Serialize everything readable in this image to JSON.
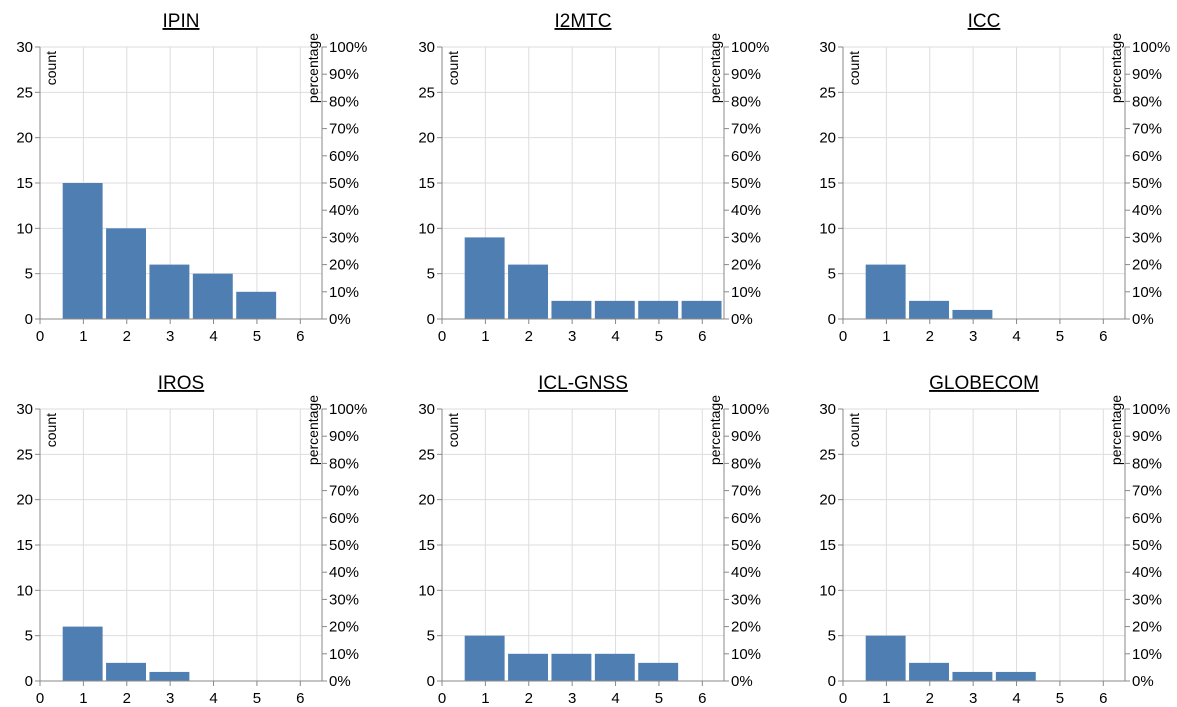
{
  "chart_data": [
    {
      "type": "bar",
      "title": "IPIN",
      "ylabel_left": "count",
      "ylabel_right": "percentage",
      "ylim": [
        0,
        30
      ],
      "xlim": [
        0,
        6.5
      ],
      "x_ticks": [
        "0",
        "1",
        "2",
        "3",
        "4",
        "5",
        "6"
      ],
      "y_ticks": [
        "0",
        "5",
        "10",
        "15",
        "20",
        "25",
        "30"
      ],
      "y2_ticks": [
        "0%",
        "10%",
        "20%",
        "30%",
        "40%",
        "50%",
        "60%",
        "70%",
        "80%",
        "90%",
        "100%"
      ],
      "bars": [
        {
          "x": 1,
          "value": 15
        },
        {
          "x": 2,
          "value": 10
        },
        {
          "x": 3,
          "value": 6
        },
        {
          "x": 4,
          "value": 5
        },
        {
          "x": 5,
          "value": 3
        }
      ],
      "grid": true
    },
    {
      "type": "bar",
      "title": "I2MTC",
      "ylabel_left": "count",
      "ylabel_right": "percentage",
      "ylim": [
        0,
        30
      ],
      "xlim": [
        0,
        6.5
      ],
      "x_ticks": [
        "0",
        "1",
        "2",
        "3",
        "4",
        "5",
        "6"
      ],
      "y_ticks": [
        "0",
        "5",
        "10",
        "15",
        "20",
        "25",
        "30"
      ],
      "y2_ticks": [
        "0%",
        "10%",
        "20%",
        "30%",
        "40%",
        "50%",
        "60%",
        "70%",
        "80%",
        "90%",
        "100%"
      ],
      "bars": [
        {
          "x": 1,
          "value": 9
        },
        {
          "x": 2,
          "value": 6
        },
        {
          "x": 3,
          "value": 2
        },
        {
          "x": 4,
          "value": 2
        },
        {
          "x": 5,
          "value": 2
        },
        {
          "x": 6,
          "value": 2
        }
      ],
      "grid": true
    },
    {
      "type": "bar",
      "title": "ICC",
      "ylabel_left": "count",
      "ylabel_right": "percentage",
      "ylim": [
        0,
        30
      ],
      "xlim": [
        0,
        6.5
      ],
      "x_ticks": [
        "0",
        "1",
        "2",
        "3",
        "4",
        "5",
        "6"
      ],
      "y_ticks": [
        "0",
        "5",
        "10",
        "15",
        "20",
        "25",
        "30"
      ],
      "y2_ticks": [
        "0%",
        "10%",
        "20%",
        "30%",
        "40%",
        "50%",
        "60%",
        "70%",
        "80%",
        "90%",
        "100%"
      ],
      "bars": [
        {
          "x": 1,
          "value": 6
        },
        {
          "x": 2,
          "value": 2
        },
        {
          "x": 3,
          "value": 1
        }
      ],
      "grid": true
    },
    {
      "type": "bar",
      "title": "IROS",
      "ylabel_left": "count",
      "ylabel_right": "percentage",
      "ylim": [
        0,
        30
      ],
      "xlim": [
        0,
        6.5
      ],
      "x_ticks": [
        "0",
        "1",
        "2",
        "3",
        "4",
        "5",
        "6"
      ],
      "y_ticks": [
        "0",
        "5",
        "10",
        "15",
        "20",
        "25",
        "30"
      ],
      "y2_ticks": [
        "0%",
        "10%",
        "20%",
        "30%",
        "40%",
        "50%",
        "60%",
        "70%",
        "80%",
        "90%",
        "100%"
      ],
      "bars": [
        {
          "x": 1,
          "value": 6
        },
        {
          "x": 2,
          "value": 2
        },
        {
          "x": 3,
          "value": 1
        }
      ],
      "grid": true
    },
    {
      "type": "bar",
      "title": "ICL-GNSS",
      "ylabel_left": "count",
      "ylabel_right": "percentage",
      "ylim": [
        0,
        30
      ],
      "xlim": [
        0,
        6.5
      ],
      "x_ticks": [
        "0",
        "1",
        "2",
        "3",
        "4",
        "5",
        "6"
      ],
      "y_ticks": [
        "0",
        "5",
        "10",
        "15",
        "20",
        "25",
        "30"
      ],
      "y2_ticks": [
        "0%",
        "10%",
        "20%",
        "30%",
        "40%",
        "50%",
        "60%",
        "70%",
        "80%",
        "90%",
        "100%"
      ],
      "bars": [
        {
          "x": 1,
          "value": 5
        },
        {
          "x": 2,
          "value": 3
        },
        {
          "x": 3,
          "value": 3
        },
        {
          "x": 4,
          "value": 3
        },
        {
          "x": 5,
          "value": 2
        }
      ],
      "grid": true
    },
    {
      "type": "bar",
      "title": "GLOBECOM",
      "ylabel_left": "count",
      "ylabel_right": "percentage",
      "ylim": [
        0,
        30
      ],
      "xlim": [
        0,
        6.5
      ],
      "x_ticks": [
        "0",
        "1",
        "2",
        "3",
        "4",
        "5",
        "6"
      ],
      "y_ticks": [
        "0",
        "5",
        "10",
        "15",
        "20",
        "25",
        "30"
      ],
      "y2_ticks": [
        "0%",
        "10%",
        "20%",
        "30%",
        "40%",
        "50%",
        "60%",
        "70%",
        "80%",
        "90%",
        "100%"
      ],
      "bars": [
        {
          "x": 1,
          "value": 5
        },
        {
          "x": 2,
          "value": 2
        },
        {
          "x": 3,
          "value": 1
        },
        {
          "x": 4,
          "value": 1
        }
      ],
      "grid": true
    }
  ],
  "colors": {
    "bar": "#4f7fb2",
    "grid": "#dddddd",
    "axis": "#888888"
  }
}
